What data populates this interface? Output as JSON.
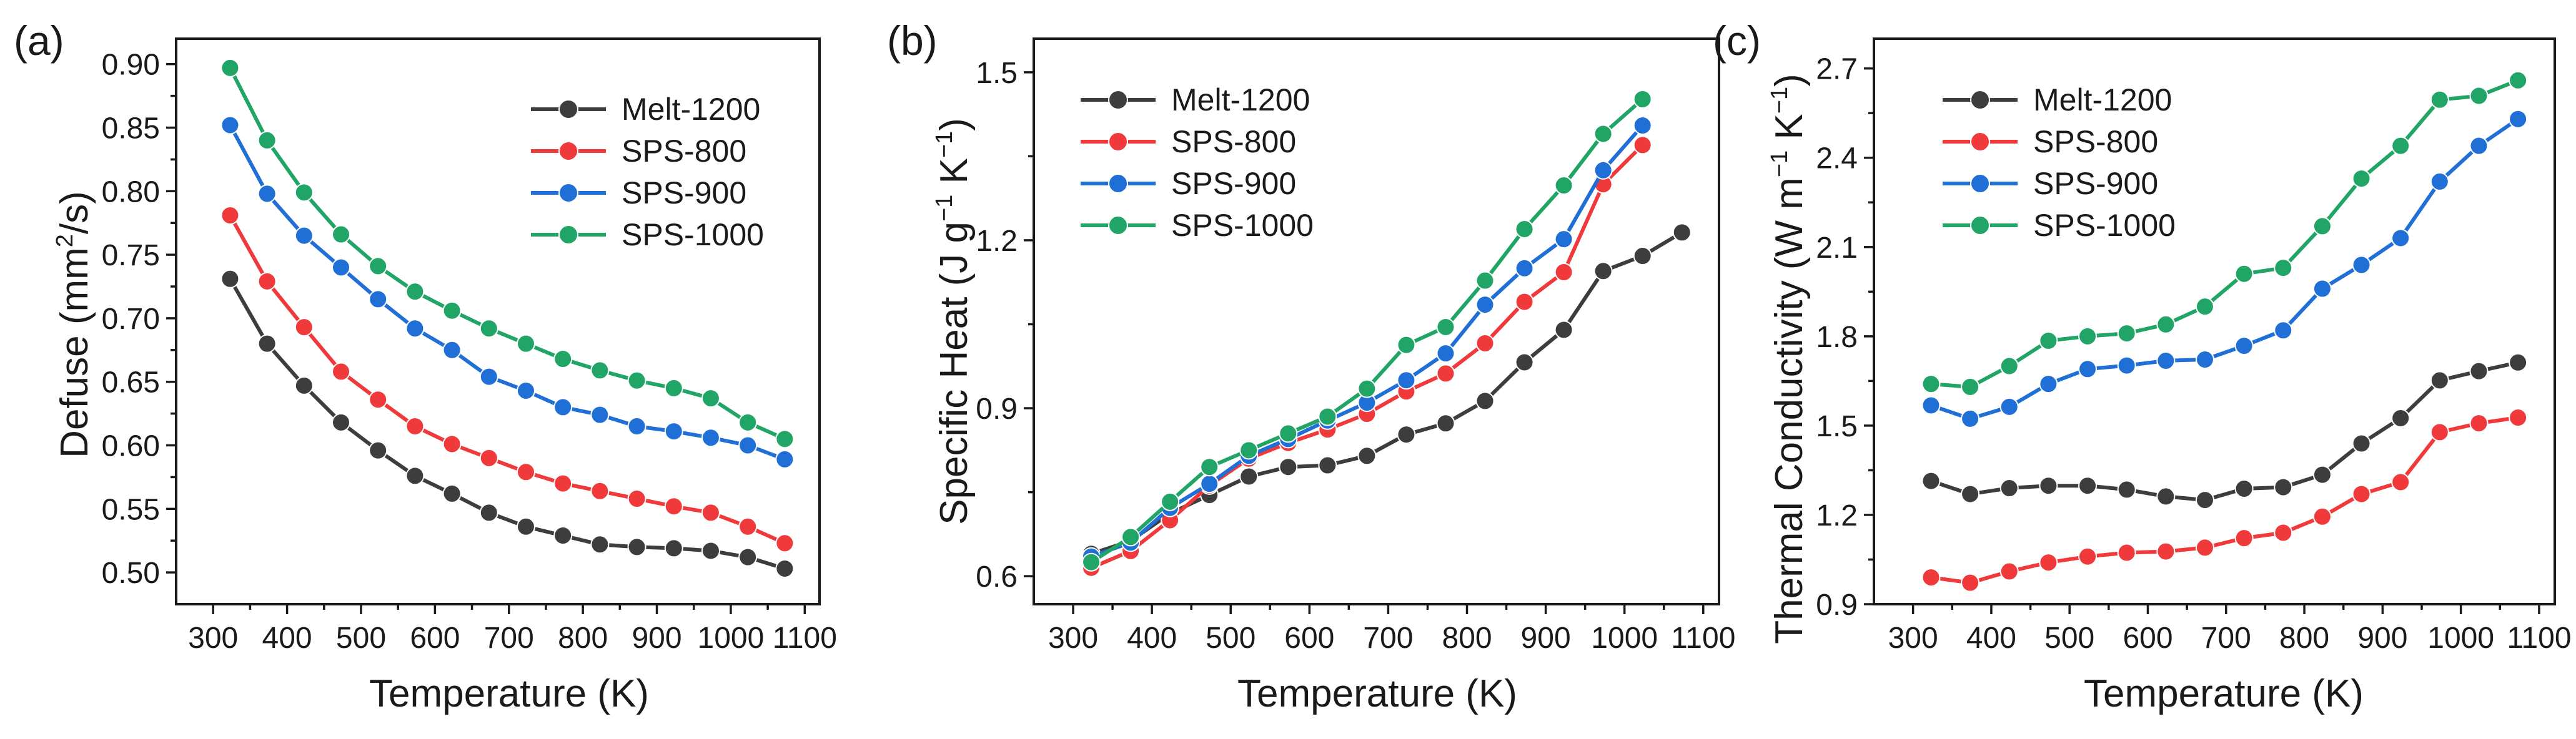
{
  "figure": {
    "panels": [
      {
        "letter": "(a)",
        "ylabel_main": "Defuse (mm",
        "ylabel_sup": "2",
        "ylabel_tail": "/s)",
        "xlabel": "Temperature (K)"
      },
      {
        "letter": "(b)",
        "ylabel_main": "Specific Heat (J g",
        "ylabel_sup": "−1",
        "ylabel_mid": " K",
        "ylabel_sup2": "−1",
        "ylabel_tail": ")",
        "xlabel": "Temperature (K)"
      },
      {
        "letter": "(c)",
        "ylabel_main": "Thermal Conductivity (W m",
        "ylabel_sup": "−1",
        "ylabel_mid": " K",
        "ylabel_sup2": "−1",
        "ylabel_tail": ")",
        "xlabel": "Temperature (K)"
      }
    ]
  },
  "chart_data": [
    {
      "type": "line",
      "title": "",
      "xlabel": "Temperature (K)",
      "ylabel": "Defuse (mm2/s)",
      "xlim": [
        250,
        1120
      ],
      "ylim": [
        0.475,
        0.92
      ],
      "xticks": [
        300,
        400,
        500,
        600,
        700,
        800,
        900,
        1000,
        1100
      ],
      "xtick_labels": [
        "300",
        "400",
        "500",
        "600",
        "700",
        "800",
        "900",
        "1000",
        "1100"
      ],
      "yticks": [
        0.5,
        0.55,
        0.6,
        0.65,
        0.7,
        0.75,
        0.8,
        0.85,
        0.9
      ],
      "ytick_labels": [
        "0.50",
        "0.55",
        "0.60",
        "0.65",
        "0.70",
        "0.75",
        "0.80",
        "0.85",
        "0.90"
      ],
      "legend_position": "top-right",
      "grid": false,
      "series": [
        {
          "name": "Melt-1200",
          "color": "#3d3d3d",
          "x": [
            323,
            373,
            423,
            473,
            523,
            573,
            623,
            673,
            723,
            773,
            823,
            873,
            923,
            973,
            1023,
            1073
          ],
          "y": [
            0.731,
            0.68,
            0.647,
            0.618,
            0.596,
            0.576,
            0.562,
            0.547,
            0.536,
            0.529,
            0.522,
            0.52,
            0.519,
            0.517,
            0.512,
            0.503
          ]
        },
        {
          "name": "SPS-800",
          "color": "#f0393a",
          "x": [
            323,
            373,
            423,
            473,
            523,
            573,
            623,
            673,
            723,
            773,
            823,
            873,
            923,
            973,
            1023,
            1073
          ],
          "y": [
            0.781,
            0.729,
            0.693,
            0.658,
            0.636,
            0.615,
            0.601,
            0.59,
            0.579,
            0.57,
            0.564,
            0.558,
            0.552,
            0.547,
            0.536,
            0.523
          ]
        },
        {
          "name": "SPS-900",
          "color": "#1f6fd6",
          "x": [
            323,
            373,
            423,
            473,
            523,
            573,
            623,
            673,
            723,
            773,
            823,
            873,
            923,
            973,
            1023,
            1073
          ],
          "y": [
            0.852,
            0.798,
            0.765,
            0.74,
            0.715,
            0.692,
            0.675,
            0.654,
            0.643,
            0.63,
            0.624,
            0.615,
            0.611,
            0.606,
            0.6,
            0.589
          ]
        },
        {
          "name": "SPS-1000",
          "color": "#21a566",
          "x": [
            323,
            373,
            423,
            473,
            523,
            573,
            623,
            673,
            723,
            773,
            823,
            873,
            923,
            973,
            1023,
            1073
          ],
          "y": [
            0.897,
            0.84,
            0.799,
            0.766,
            0.741,
            0.721,
            0.706,
            0.692,
            0.68,
            0.668,
            0.659,
            0.651,
            0.645,
            0.637,
            0.618,
            0.605
          ]
        }
      ]
    },
    {
      "type": "line",
      "title": "",
      "xlabel": "Temperature (K)",
      "ylabel": "Specific Heat (J g-1 K-1)",
      "xlim": [
        250,
        1120
      ],
      "ylim": [
        0.55,
        1.56
      ],
      "xticks": [
        300,
        400,
        500,
        600,
        700,
        800,
        900,
        1000,
        1100
      ],
      "xtick_labels": [
        "300",
        "400",
        "500",
        "600",
        "700",
        "800",
        "900",
        "1000",
        "1100"
      ],
      "yticks": [
        0.6,
        0.9,
        1.2,
        1.5
      ],
      "ytick_labels": [
        "0.6",
        "0.9",
        "1.2",
        "1.5"
      ],
      "legend_position": "top-left",
      "grid": false,
      "series": [
        {
          "name": "Melt-1200",
          "color": "#3d3d3d",
          "x": [
            323,
            373,
            423,
            473,
            523,
            573,
            623,
            673,
            723,
            773,
            823,
            873,
            923,
            973,
            1023,
            1073
          ],
          "y": [
            0.64,
            0.663,
            0.712,
            0.745,
            0.778,
            0.795,
            0.798,
            0.815,
            0.853,
            0.873,
            0.913,
            0.982,
            1.04,
            1.145,
            1.172,
            1.214
          ]
        },
        {
          "name": "SPS-800",
          "color": "#f0393a",
          "x": [
            323,
            373,
            423,
            473,
            523,
            573,
            623,
            673,
            723,
            773,
            823,
            873,
            923,
            973,
            1023
          ],
          "y": [
            0.615,
            0.645,
            0.7,
            0.762,
            0.81,
            0.838,
            0.862,
            0.89,
            0.93,
            0.962,
            1.016,
            1.09,
            1.143,
            1.3,
            1.37
          ]
        },
        {
          "name": "SPS-900",
          "color": "#1f6fd6",
          "x": [
            323,
            373,
            423,
            473,
            523,
            573,
            623,
            673,
            723,
            773,
            823,
            873,
            923,
            973,
            1023
          ],
          "y": [
            0.635,
            0.66,
            0.722,
            0.765,
            0.815,
            0.845,
            0.878,
            0.91,
            0.95,
            0.998,
            1.085,
            1.15,
            1.202,
            1.325,
            1.405
          ]
        },
        {
          "name": "SPS-1000",
          "color": "#21a566",
          "x": [
            323,
            373,
            423,
            473,
            523,
            573,
            623,
            673,
            723,
            773,
            823,
            873,
            923,
            973,
            1023
          ],
          "y": [
            0.625,
            0.67,
            0.733,
            0.795,
            0.825,
            0.855,
            0.885,
            0.935,
            1.013,
            1.045,
            1.128,
            1.22,
            1.298,
            1.39,
            1.452
          ]
        }
      ]
    },
    {
      "type": "line",
      "title": "",
      "xlabel": "Temperature (K)",
      "ylabel": "Thermal Conductivity (W m-1 K-1)",
      "xlim": [
        250,
        1120
      ],
      "ylim": [
        0.9,
        2.8
      ],
      "xticks": [
        300,
        400,
        500,
        600,
        700,
        800,
        900,
        1000,
        1100
      ],
      "xtick_labels": [
        "300",
        "400",
        "500",
        "600",
        "700",
        "800",
        "900",
        "1000",
        "1100"
      ],
      "yticks": [
        0.9,
        1.2,
        1.5,
        1.8,
        2.1,
        2.4,
        2.7
      ],
      "ytick_labels": [
        "0.9",
        "1.2",
        "1.5",
        "1.8",
        "2.1",
        "2.4",
        "2.7"
      ],
      "legend_position": "top-left",
      "grid": false,
      "series": [
        {
          "name": "Melt-1200",
          "color": "#3d3d3d",
          "x": [
            323,
            373,
            423,
            473,
            523,
            573,
            623,
            673,
            723,
            773,
            823,
            873,
            923,
            973,
            1023,
            1073
          ],
          "y": [
            1.314,
            1.27,
            1.29,
            1.298,
            1.298,
            1.285,
            1.262,
            1.25,
            1.288,
            1.293,
            1.335,
            1.44,
            1.525,
            1.652,
            1.683,
            1.712
          ]
        },
        {
          "name": "SPS-800",
          "color": "#f0393a",
          "x": [
            323,
            373,
            423,
            473,
            523,
            573,
            623,
            673,
            723,
            773,
            823,
            873,
            923,
            973,
            1023,
            1073
          ],
          "y": [
            0.99,
            0.972,
            1.01,
            1.04,
            1.06,
            1.073,
            1.077,
            1.09,
            1.122,
            1.14,
            1.194,
            1.27,
            1.31,
            1.478,
            1.508,
            1.527
          ]
        },
        {
          "name": "SPS-900",
          "color": "#1f6fd6",
          "x": [
            323,
            373,
            423,
            473,
            523,
            573,
            623,
            673,
            723,
            773,
            823,
            873,
            923,
            973,
            1023,
            1073
          ],
          "y": [
            1.568,
            1.523,
            1.563,
            1.64,
            1.69,
            1.702,
            1.718,
            1.722,
            1.768,
            1.82,
            1.96,
            2.04,
            2.13,
            2.32,
            2.44,
            2.53
          ]
        },
        {
          "name": "SPS-1000",
          "color": "#21a566",
          "x": [
            323,
            373,
            423,
            473,
            523,
            573,
            623,
            673,
            723,
            773,
            823,
            873,
            923,
            973,
            1023,
            1073
          ],
          "y": [
            1.64,
            1.63,
            1.7,
            1.785,
            1.8,
            1.81,
            1.84,
            1.9,
            2.01,
            2.03,
            2.17,
            2.33,
            2.44,
            2.595,
            2.608,
            2.66
          ]
        }
      ]
    }
  ]
}
